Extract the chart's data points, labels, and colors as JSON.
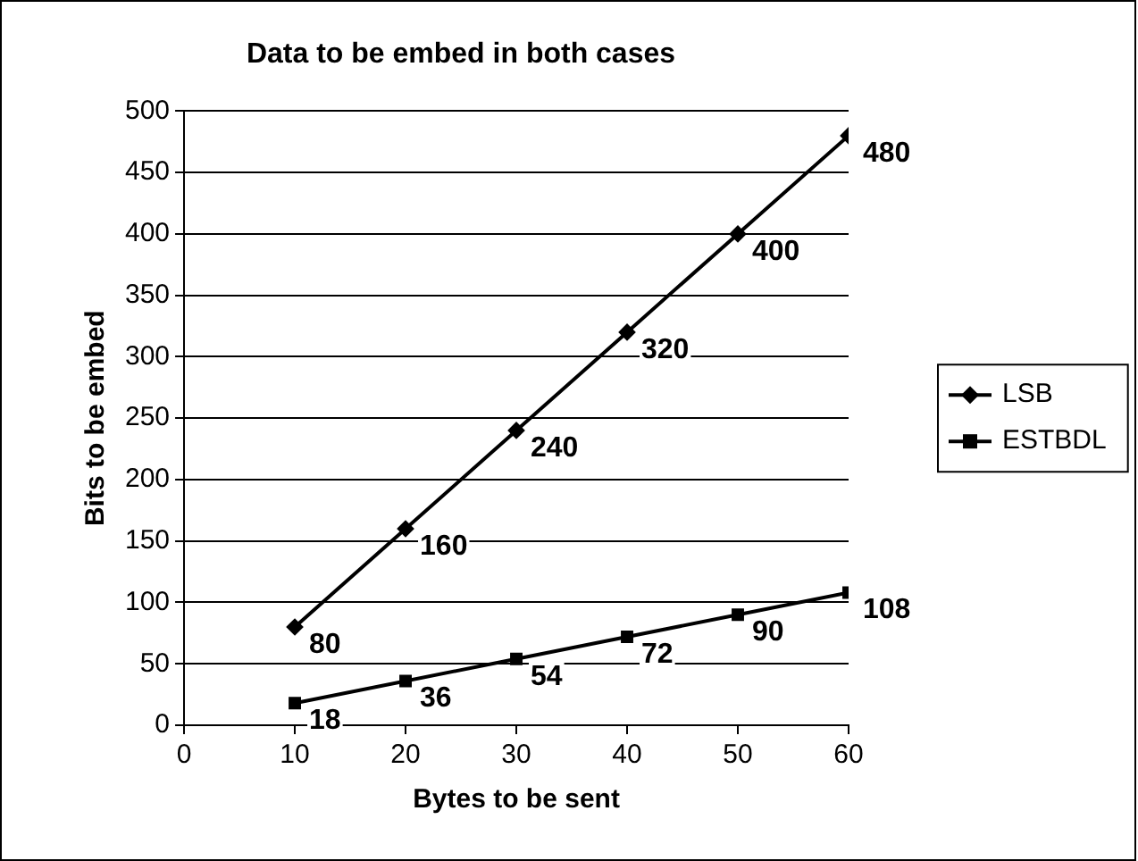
{
  "chart_data": {
    "type": "line",
    "title": "Data to be embed in both cases",
    "xlabel": "Bytes to be sent",
    "ylabel": "Bits to be embed",
    "x": [
      10,
      20,
      30,
      40,
      50,
      60
    ],
    "series": [
      {
        "name": "LSB",
        "color": "#000000",
        "marker": "diamond",
        "values": [
          80,
          160,
          240,
          320,
          400,
          480
        ]
      },
      {
        "name": "ESTBDL",
        "color": "#000000",
        "marker": "square",
        "values": [
          18,
          36,
          54,
          72,
          90,
          108
        ]
      }
    ],
    "xlim": [
      0,
      60
    ],
    "xticks": [
      0,
      10,
      20,
      30,
      40,
      50,
      60
    ],
    "ylim": [
      0,
      500
    ],
    "yticks": [
      0,
      50,
      100,
      150,
      200,
      250,
      300,
      350,
      400,
      450,
      500
    ],
    "grid": "y",
    "legend": "right",
    "data_labels": true,
    "line_style": "solid"
  }
}
